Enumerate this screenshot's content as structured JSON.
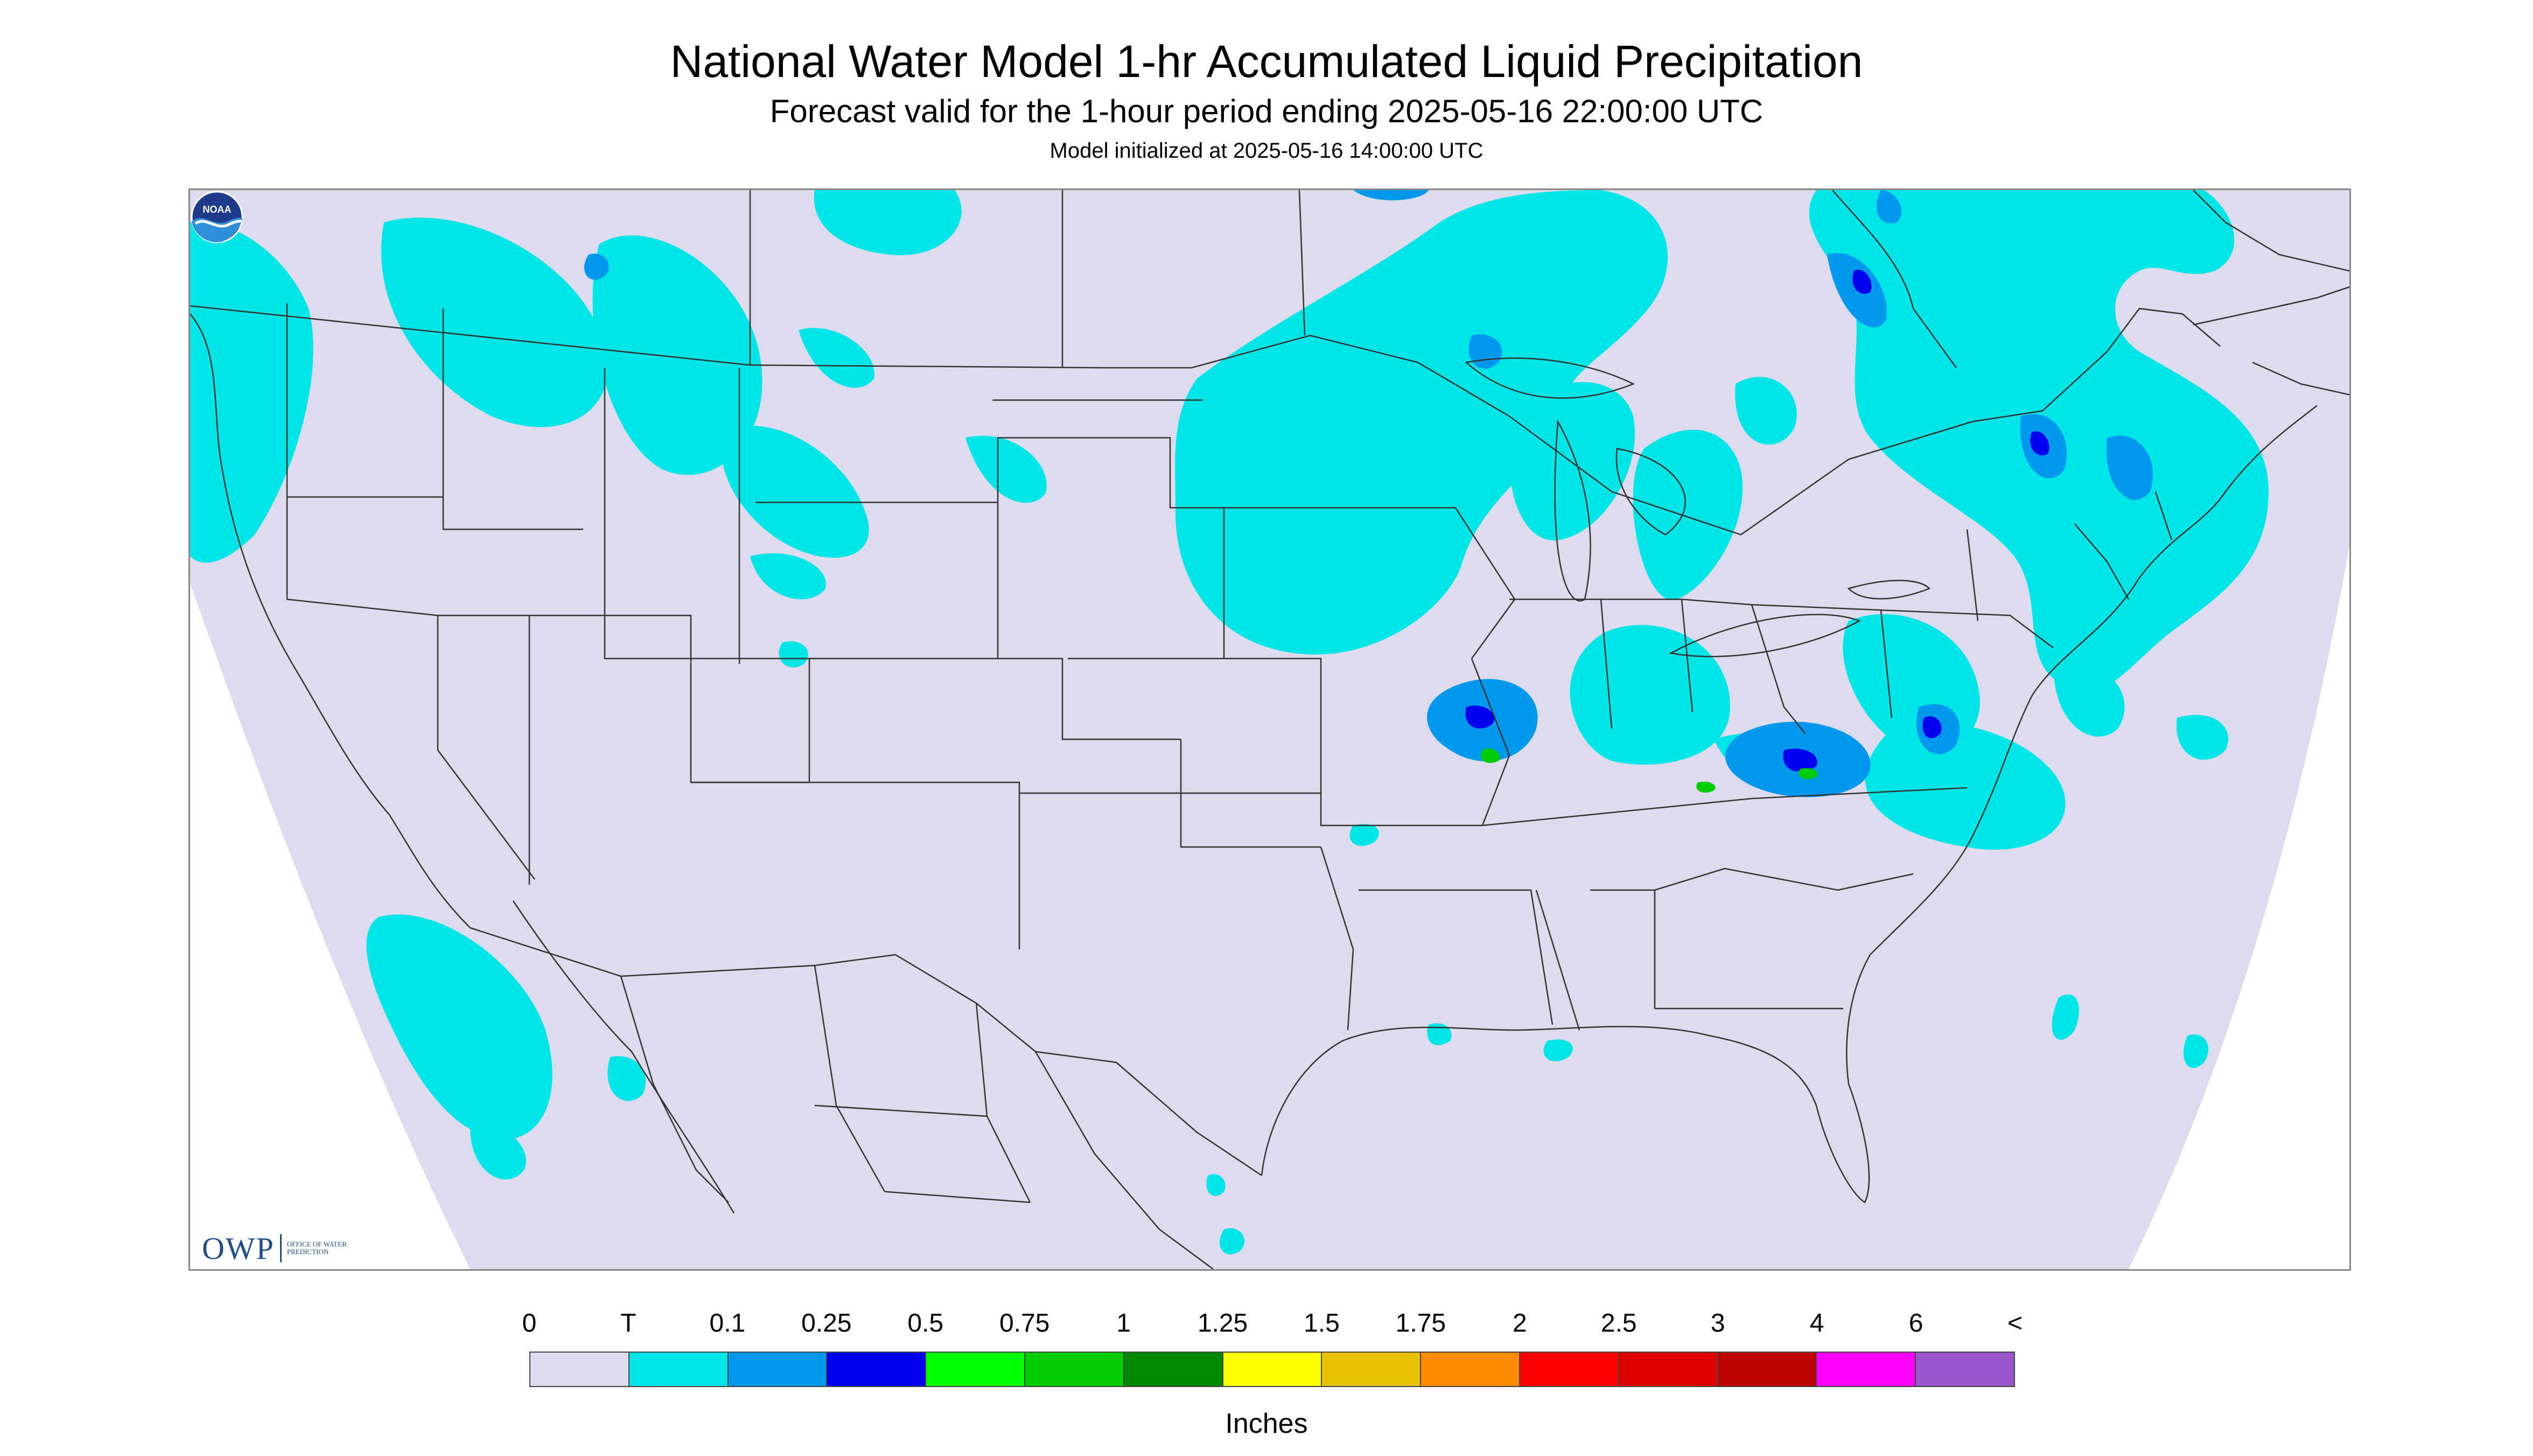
{
  "title": "National Water Model 1-hr Accumulated Liquid Precipitation",
  "subtitle": "Forecast valid for the 1-hour period ending 2025-05-16 22:00:00 UTC",
  "init_text": "Model initialized at 2025-05-16 14:00:00 UTC",
  "logo_owp": {
    "letters": "OWP",
    "subtext": "OFFICE OF WATER PREDICTION"
  },
  "logo_noaa": {
    "text": "NOAA"
  },
  "legend": {
    "labels": [
      "0",
      "T",
      "0.1",
      "0.25",
      "0.5",
      "0.75",
      "1",
      "1.25",
      "1.5",
      "1.75",
      "2",
      "2.5",
      "3",
      "4",
      "6",
      "<"
    ],
    "colors": [
      "#dcdcee",
      "#00e5e5",
      "#0099ee",
      "#0000ee",
      "#00ff00",
      "#00cc00",
      "#008800",
      "#ffff00",
      "#e6c200",
      "#ff8c00",
      "#ff0000",
      "#dd0000",
      "#bb0000",
      "#ff00ff",
      "#9955cc"
    ],
    "units": "Inches"
  },
  "colors": {
    "domain": "#dcdcee",
    "trace": "#00e5e5",
    "light": "#0099ee",
    "moderate": "#0000ee",
    "heavy": "#00cc00",
    "borders": "#333333"
  }
}
